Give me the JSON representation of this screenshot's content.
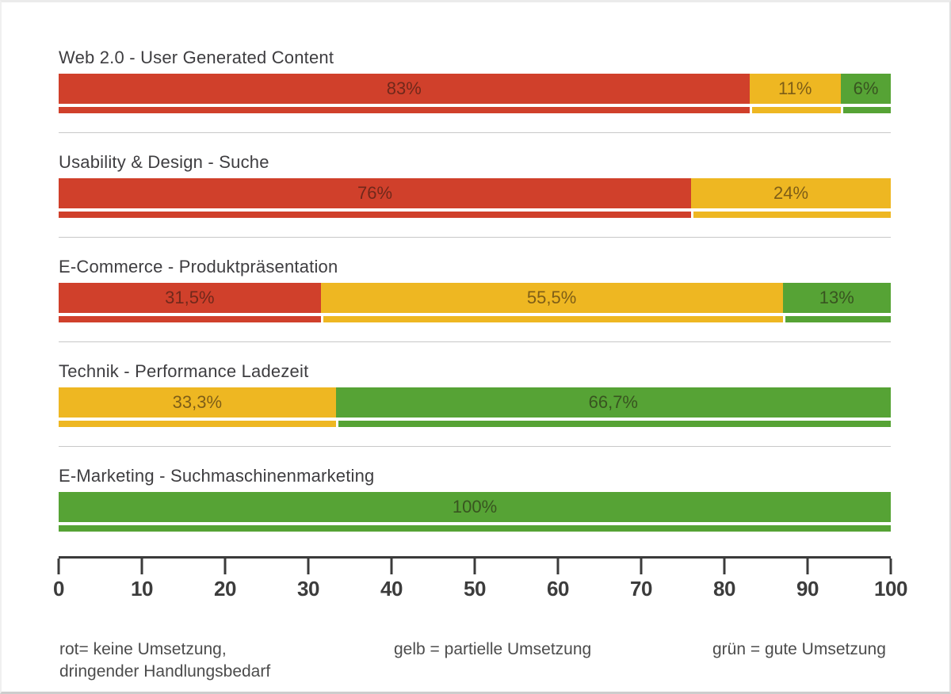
{
  "chart_data": {
    "type": "bar",
    "orientation": "horizontal",
    "stacked": true,
    "grid": false,
    "x_axis": {
      "min": 0,
      "max": 100,
      "tick_step": 10,
      "ticks": [
        0,
        10,
        20,
        30,
        40,
        50,
        60,
        70,
        80,
        90,
        100
      ]
    },
    "series_colors": {
      "red": "#d0402b",
      "yellow": "#eeb722",
      "green": "#56a335"
    },
    "rows": [
      {
        "label": "Web 2.0 - User Generated Content",
        "segments": [
          {
            "color_key": "red",
            "value": 83,
            "label": "83%"
          },
          {
            "color_key": "yellow",
            "value": 11,
            "label": "11%"
          },
          {
            "color_key": "green",
            "value": 6,
            "label": "6%"
          }
        ]
      },
      {
        "label": "Usability & Design - Suche",
        "segments": [
          {
            "color_key": "red",
            "value": 76,
            "label": "76%"
          },
          {
            "color_key": "yellow",
            "value": 24,
            "label": "24%"
          }
        ]
      },
      {
        "label": "E-Commerce - Produktpräsentation",
        "segments": [
          {
            "color_key": "red",
            "value": 31.5,
            "label": "31,5%"
          },
          {
            "color_key": "yellow",
            "value": 55.5,
            "label": "55,5%"
          },
          {
            "color_key": "green",
            "value": 13,
            "label": "13%"
          }
        ]
      },
      {
        "label": "Technik - Performance Ladezeit",
        "segments": [
          {
            "color_key": "yellow",
            "value": 33.3,
            "label": "33,3%"
          },
          {
            "color_key": "green",
            "value": 66.7,
            "label": "66,7%"
          }
        ]
      },
      {
        "label": "E-Marketing - Suchmaschinenmarketing",
        "segments": [
          {
            "color_key": "green",
            "value": 100,
            "label": "100%"
          }
        ]
      }
    ],
    "legend_position": "bottom"
  },
  "legend": {
    "items": [
      {
        "color_key": "red",
        "text_lines": [
          "rot= keine Umsetzung,",
          "dringender Handlungsbedarf"
        ]
      },
      {
        "color_key": "yellow",
        "text_lines": [
          "gelb = partielle Umsetzung"
        ]
      },
      {
        "color_key": "green",
        "text_lines": [
          "grün = gute Umsetzung"
        ]
      }
    ]
  }
}
